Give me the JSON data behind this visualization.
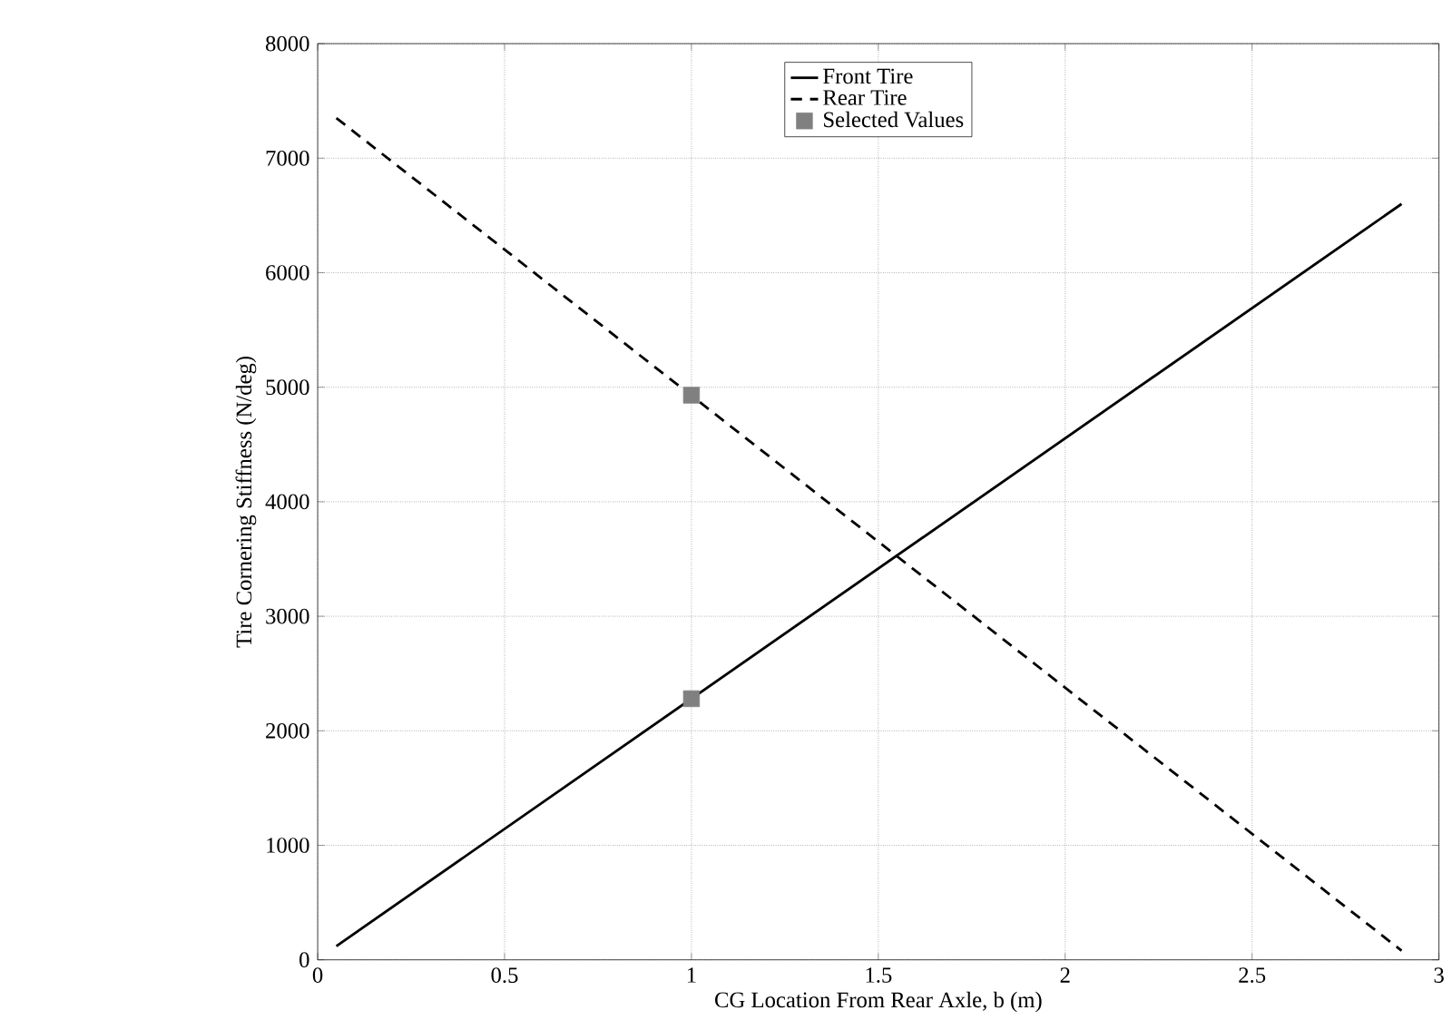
{
  "chart_data": {
    "type": "line",
    "xlabel": "CG Location From Rear Axle, b (m)",
    "ylabel": "Tire Cornering Stiffness (N/deg)",
    "xlim": [
      0,
      3
    ],
    "ylim": [
      0,
      8000
    ],
    "xticks": [
      0,
      0.5,
      1,
      1.5,
      2,
      2.5,
      3
    ],
    "yticks": [
      0,
      1000,
      2000,
      3000,
      4000,
      5000,
      6000,
      7000,
      8000
    ],
    "grid": true,
    "legend": "top",
    "series": [
      {
        "name": "Front Tire",
        "color": "#000000",
        "line_style": "solid",
        "marker": "none",
        "x": [
          0.05,
          2.9
        ],
        "values": [
          120,
          6600
        ]
      },
      {
        "name": "Rear Tire",
        "color": "#000000",
        "line_style": "dashed",
        "marker": "none",
        "x": [
          0.05,
          2.9
        ],
        "values": [
          7350,
          80
        ]
      },
      {
        "name": "Selected Values",
        "type": "scatter",
        "color": "#808080",
        "marker": "square",
        "x": [
          1,
          1
        ],
        "values": [
          2280,
          4930
        ]
      }
    ]
  }
}
